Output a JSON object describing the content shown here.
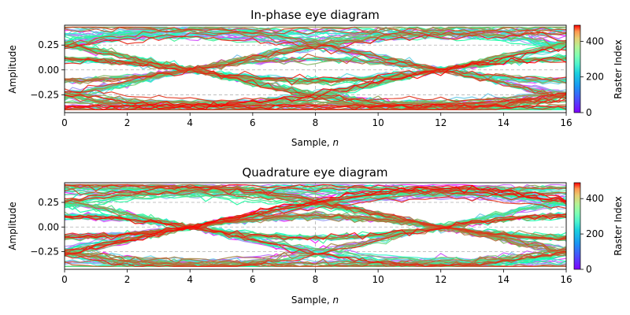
{
  "chart_data": [
    {
      "type": "line",
      "title": "In-phase eye diagram",
      "xlabel": "Sample, ",
      "xlabel_var": "n",
      "ylabel": "Amplitude",
      "xlim": [
        0,
        16
      ],
      "ylim": [
        -0.43,
        0.45
      ],
      "xticks": [
        0,
        2,
        4,
        6,
        8,
        10,
        12,
        14,
        16
      ],
      "xtick_labels": [
        "0",
        "2",
        "4",
        "6",
        "8",
        "10",
        "12",
        "14",
        "16"
      ],
      "yticks": [
        0.25,
        0.0,
        -0.25
      ],
      "ytick_labels": [
        "0.25",
        "0.00",
        "−0.25"
      ],
      "grid": true,
      "colorbar": {
        "label": "Raster Index",
        "colormap": "rainbow",
        "range": [
          0,
          490
        ],
        "ticks": [
          0,
          200,
          400
        ],
        "tick_labels": [
          "0",
          "200",
          "400"
        ]
      },
      "eye": {
        "levels": [
          -0.25,
          0.25
        ],
        "symbol_period": 8,
        "crossing_samples": [
          4,
          12
        ],
        "trace_count": 490,
        "envelope_max": 0.43,
        "envelope_min": -0.4
      }
    },
    {
      "type": "line",
      "title": "Quadrature eye diagram",
      "xlabel": "Sample, ",
      "xlabel_var": "n",
      "ylabel": "Amplitude",
      "xlim": [
        0,
        16
      ],
      "ylim": [
        -0.43,
        0.45
      ],
      "xticks": [
        0,
        2,
        4,
        6,
        8,
        10,
        12,
        14,
        16
      ],
      "xtick_labels": [
        "0",
        "2",
        "4",
        "6",
        "8",
        "10",
        "12",
        "14",
        "16"
      ],
      "yticks": [
        0.25,
        0.0,
        -0.25
      ],
      "ytick_labels": [
        "0.25",
        "0.00",
        "−0.25"
      ],
      "grid": true,
      "colorbar": {
        "label": "Raster Index",
        "colormap": "rainbow",
        "range": [
          0,
          490
        ],
        "ticks": [
          0,
          200,
          400
        ],
        "tick_labels": [
          "0",
          "200",
          "400"
        ]
      },
      "eye": {
        "levels": [
          -0.25,
          0.25
        ],
        "symbol_period": 8,
        "crossing_samples": [
          4,
          12
        ],
        "trace_count": 490,
        "envelope_max": 0.43,
        "envelope_min": -0.4
      }
    }
  ]
}
